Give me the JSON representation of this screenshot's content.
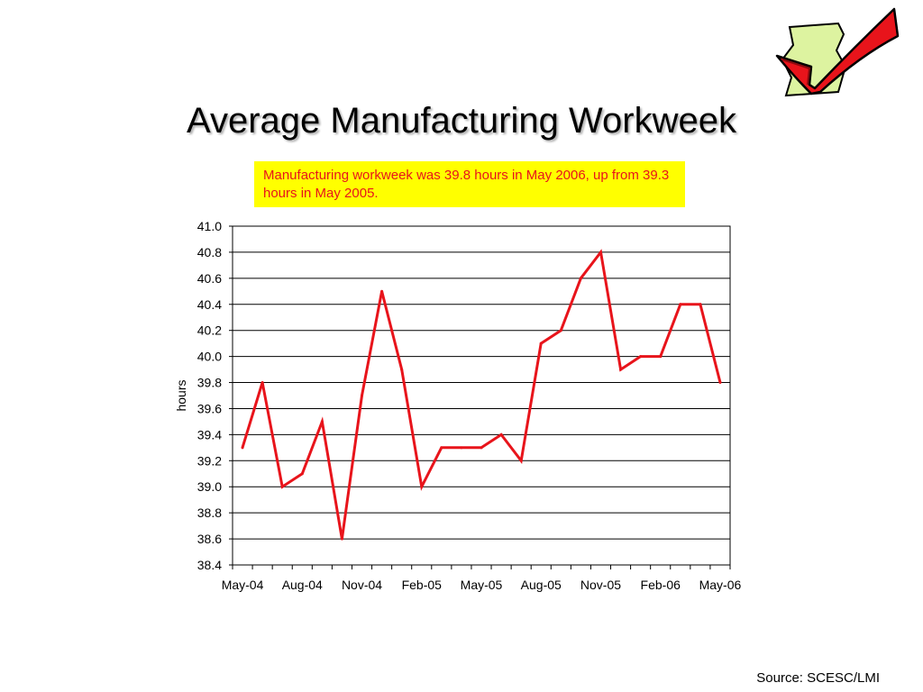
{
  "slide": {
    "title": "Average Manufacturing Workweek",
    "note": "Manufacturing workweek was 39.8 hours in May 2006, up from 39.3 hours in May 2005.",
    "source": "Source: SCESC/LMI"
  },
  "colors": {
    "line": "#e8141b",
    "note_bg": "#ffff00",
    "note_text": "#e8141b"
  },
  "icons": {
    "corner": "checkmark-icon"
  },
  "chart_data": {
    "type": "line",
    "ylabel": "hours",
    "xlabel": "",
    "ylim": [
      38.4,
      41.0
    ],
    "yticks": [
      "41.0",
      "40.8",
      "40.6",
      "40.4",
      "40.2",
      "40.0",
      "39.8",
      "39.6",
      "39.4",
      "39.2",
      "39.0",
      "38.8",
      "38.6",
      "38.4"
    ],
    "xticks": [
      "May-04",
      "Aug-04",
      "Nov-04",
      "Feb-05",
      "May-05",
      "Aug-05",
      "Nov-05",
      "Feb-06",
      "May-06"
    ],
    "grid": "horizontal",
    "x": [
      "May-04",
      "Jun-04",
      "Jul-04",
      "Aug-04",
      "Sep-04",
      "Oct-04",
      "Nov-04",
      "Dec-04",
      "Jan-05",
      "Feb-05",
      "Mar-05",
      "Apr-05",
      "May-05",
      "Jun-05",
      "Jul-05",
      "Aug-05",
      "Sep-05",
      "Oct-05",
      "Nov-05",
      "Dec-05",
      "Jan-06",
      "Feb-06",
      "Mar-06",
      "Apr-06",
      "May-06"
    ],
    "series": [
      {
        "values": [
          39.3,
          39.8,
          39.0,
          39.1,
          39.5,
          38.6,
          39.7,
          40.5,
          39.9,
          39.0,
          39.3,
          39.3,
          39.3,
          39.4,
          39.2,
          40.1,
          40.2,
          40.6,
          40.8,
          39.9,
          40.0,
          40.0,
          40.4,
          40.4,
          39.8
        ]
      }
    ]
  }
}
